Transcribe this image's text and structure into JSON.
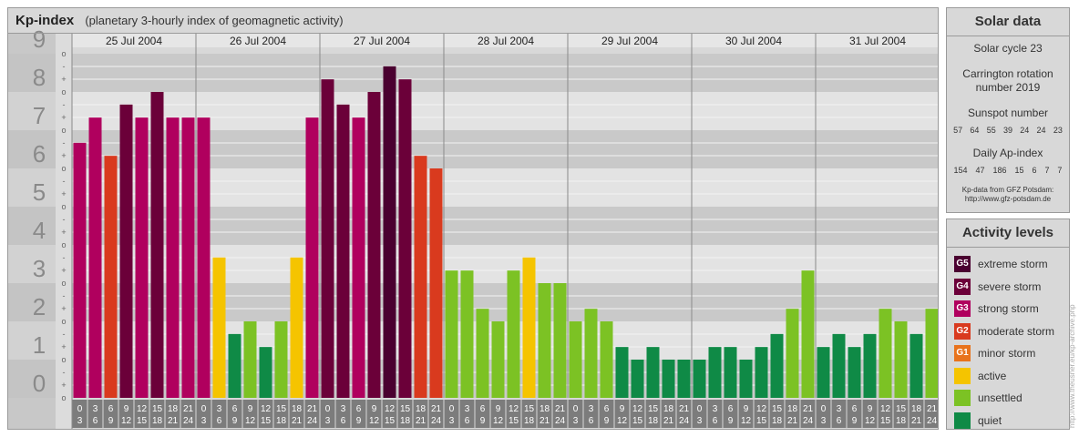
{
  "header": {
    "title": "Kp-index",
    "subtitle": "(planetary 3-hourly index of geomagnetic activity)"
  },
  "colors": {
    "G5": "#4a0030",
    "G4": "#6b0039",
    "G3": "#b0005e",
    "G2": "#d93a1e",
    "G1": "#e8731c",
    "active": "#f5c400",
    "unsettled": "#7cc224",
    "quiet": "#0f8a46"
  },
  "chart_data": {
    "type": "bar",
    "days": [
      "25 Jul 2004",
      "26 Jul 2004",
      "27 Jul 2004",
      "28 Jul 2004",
      "29 Jul 2004",
      "30 Jul 2004",
      "31 Jul 2004"
    ],
    "interval_labels": [
      [
        "0",
        "3"
      ],
      [
        "3",
        "6"
      ],
      [
        "6",
        "9"
      ],
      [
        "9",
        "12"
      ],
      [
        "12",
        "15"
      ],
      [
        "15",
        "18"
      ],
      [
        "18",
        "21"
      ],
      [
        "21",
        "24"
      ]
    ],
    "y_ticks": [
      "0",
      "1",
      "2",
      "3",
      "4",
      "5",
      "6",
      "7",
      "8",
      "9"
    ],
    "minor_ticks": [
      "o",
      "+",
      "-"
    ],
    "ylim": [
      0,
      9
    ],
    "values": [
      6.67,
      7.33,
      6.33,
      7.67,
      7.33,
      8.0,
      7.33,
      7.33,
      7.33,
      3.67,
      1.67,
      2.0,
      1.33,
      2.0,
      3.67,
      7.33,
      8.33,
      7.67,
      7.33,
      8.0,
      8.67,
      8.33,
      6.33,
      6.0,
      3.33,
      3.33,
      2.33,
      2.0,
      3.33,
      3.67,
      3.0,
      3.0,
      2.0,
      2.33,
      2.0,
      1.33,
      1.0,
      1.33,
      1.0,
      1.0,
      1.0,
      1.33,
      1.33,
      1.0,
      1.33,
      1.67,
      2.33,
      3.33,
      1.33,
      1.67,
      1.33,
      1.67,
      2.33,
      2.0,
      1.67,
      2.33
    ]
  },
  "solar": {
    "title": "Solar data",
    "cycle": "Solar cycle 23",
    "carrington_1": "Carrington rotation",
    "carrington_2": "number 2019",
    "sunspot_label": "Sunspot number",
    "sunspot_values": [
      "57",
      "64",
      "55",
      "39",
      "24",
      "24",
      "23"
    ],
    "ap_label": "Daily Ap-index",
    "ap_values": [
      "154",
      "47",
      "186",
      "15",
      "6",
      "7",
      "7"
    ],
    "credit_1": "Kp-data from GFZ Potsdam:",
    "credit_2": "http://www.gfz-potsdam.de"
  },
  "activity": {
    "title": "Activity levels",
    "items": [
      {
        "code": "G5",
        "label": "extreme storm",
        "color": "#4a0030"
      },
      {
        "code": "G4",
        "label": "severe storm",
        "color": "#6b0039"
      },
      {
        "code": "G3",
        "label": "strong storm",
        "color": "#b0005e"
      },
      {
        "code": "G2",
        "label": "moderate storm",
        "color": "#d93a1e"
      },
      {
        "code": "G1",
        "label": "minor storm",
        "color": "#e8731c"
      },
      {
        "code": "",
        "label": "active",
        "color": "#f5c400"
      },
      {
        "code": "",
        "label": "unsettled",
        "color": "#7cc224"
      },
      {
        "code": "",
        "label": "quiet",
        "color": "#0f8a46"
      }
    ]
  },
  "watermark": "http://www.theusner.eu/kp-archive.php"
}
